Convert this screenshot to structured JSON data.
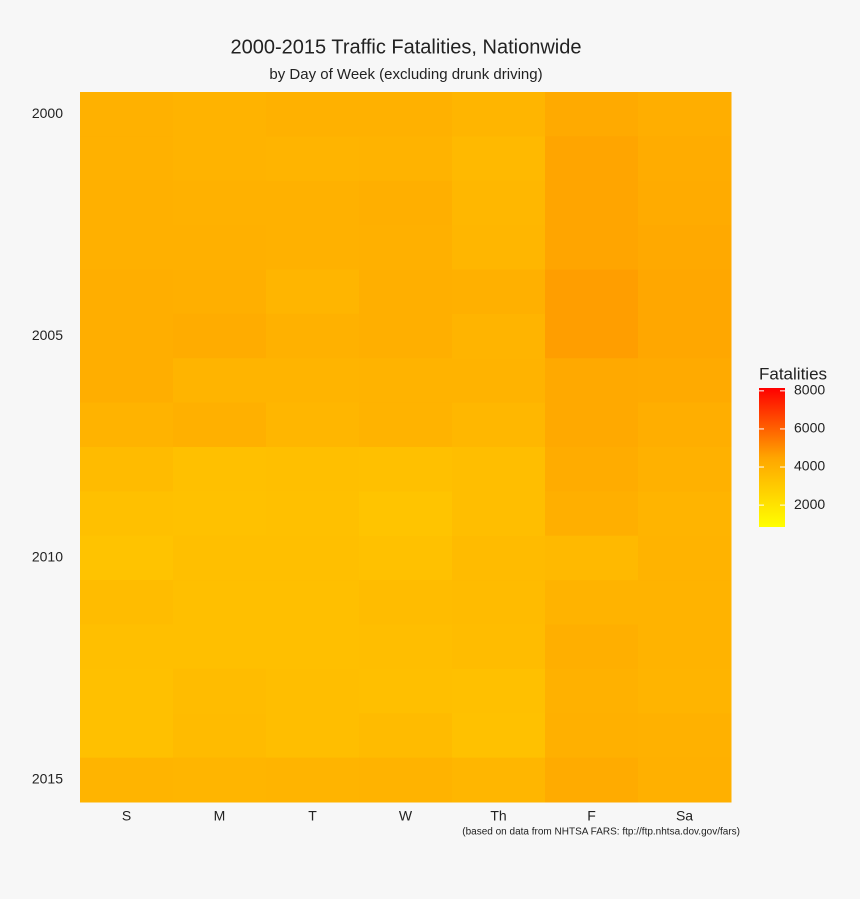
{
  "chart_data": {
    "type": "heatmap",
    "title": "2000-2015 Traffic Fatalities, Nationwide",
    "subtitle": "by Day of Week (excluding drunk driving)",
    "caption": "(based on data from NHTSA FARS: ftp://ftp.nhtsa.dov.gov/fars)",
    "categories": [
      "S",
      "M",
      "T",
      "W",
      "Th",
      "F",
      "Sa"
    ],
    "y": [
      2000,
      2001,
      2002,
      2003,
      2004,
      2005,
      2006,
      2007,
      2008,
      2009,
      2010,
      2011,
      2012,
      2013,
      2014,
      2015
    ],
    "ylim": [
      1999.5,
      2015.5
    ],
    "yticks": [
      2000,
      2005,
      2010,
      2015
    ],
    "values": [
      [
        4000,
        3950,
        4000,
        4000,
        3850,
        4300,
        4150
      ],
      [
        4000,
        3950,
        3900,
        3950,
        3700,
        4500,
        4200
      ],
      [
        4050,
        4000,
        4000,
        4100,
        3750,
        4500,
        4250
      ],
      [
        4050,
        4050,
        4000,
        4050,
        3800,
        4500,
        4350
      ],
      [
        4150,
        4100,
        3850,
        4100,
        4050,
        4650,
        4400
      ],
      [
        4150,
        4200,
        4000,
        4100,
        3900,
        4650,
        4400
      ],
      [
        4150,
        3900,
        3900,
        3950,
        3950,
        4350,
        4300
      ],
      [
        3950,
        4050,
        3800,
        3950,
        3750,
        4350,
        4150
      ],
      [
        3600,
        3400,
        3450,
        3400,
        3500,
        4200,
        4000
      ],
      [
        3400,
        3350,
        3400,
        3250,
        3500,
        4100,
        3900
      ],
      [
        3300,
        3450,
        3450,
        3350,
        3600,
        3700,
        3950
      ],
      [
        3550,
        3450,
        3450,
        3550,
        3600,
        3950,
        3950
      ],
      [
        3450,
        3450,
        3450,
        3500,
        3550,
        4100,
        3950
      ],
      [
        3400,
        3550,
        3500,
        3450,
        3400,
        4000,
        3900
      ],
      [
        3400,
        3600,
        3500,
        3600,
        3350,
        4050,
        4000
      ],
      [
        3900,
        3850,
        3900,
        3950,
        3800,
        4250,
        4050
      ]
    ],
    "legend_title": "Fatalities",
    "colorlim": [
      850,
      8150
    ],
    "colorticks": [
      2000,
      4000,
      6000,
      8000
    ],
    "colors": [
      "#ffff00",
      "#ffa500",
      "#ff0000"
    ]
  }
}
